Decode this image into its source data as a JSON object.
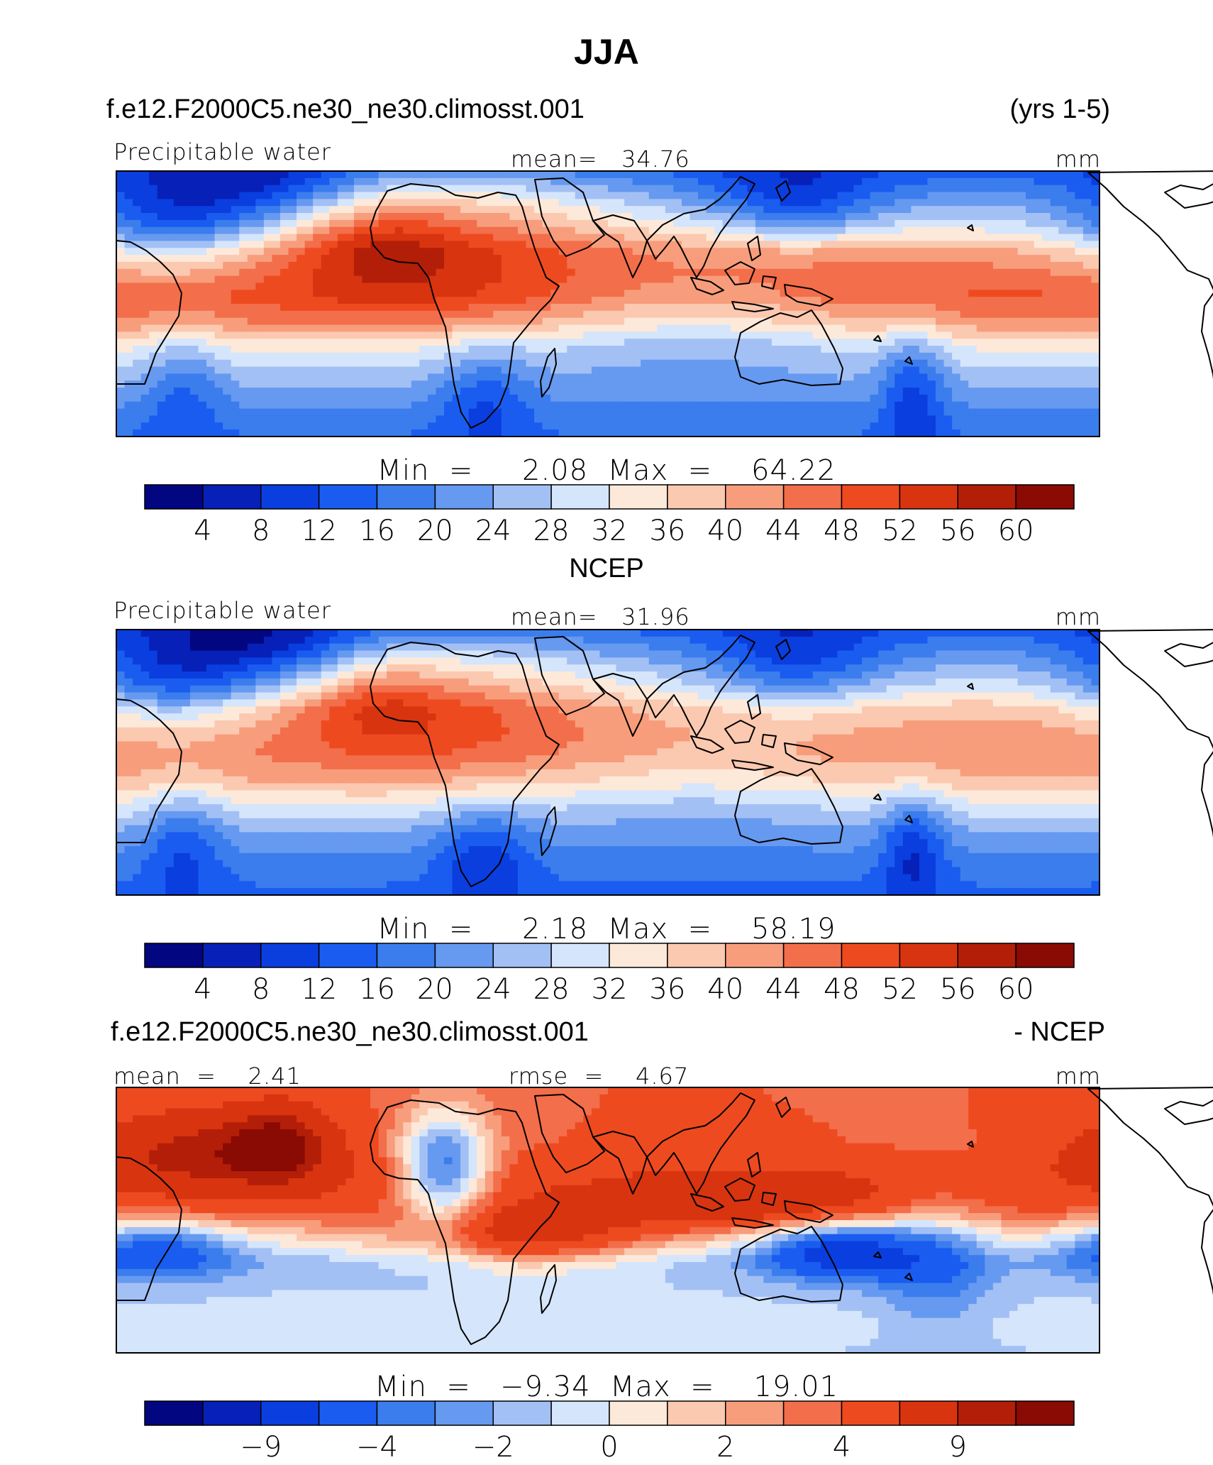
{
  "figure": {
    "title": "JJA"
  },
  "colors": {
    "palette": [
      "#020680",
      "#0620b8",
      "#0a3ede",
      "#1a5cf0",
      "#3b7ded",
      "#6699f0",
      "#a3c0f5",
      "#d5e5fb",
      "#fde9d9",
      "#fbc8b0",
      "#f79d7c",
      "#f36e4a",
      "#ee4a20",
      "#d83410",
      "#b31e08",
      "#8a0a04"
    ]
  },
  "chart_data": [
    {
      "type": "heatmap",
      "panel_heading": "f.e12.F2000C5.ne30_ne30.climosst.001",
      "years": "(yrs 1-5)",
      "variable": "Precipitable water",
      "mean_text": "mean=   34.76",
      "units": "mm",
      "min_max_text": "Min  =     2.08  Max  =    64.22",
      "min": 2.08,
      "max": 64.22,
      "mean": 34.76,
      "colorbar_ticks": [
        "4",
        "8",
        "12",
        "16",
        "20",
        "24",
        "28",
        "32",
        "36",
        "40",
        "44",
        "48",
        "52",
        "56",
        "60"
      ],
      "field": {
        "lon_range": [
          0,
          360
        ],
        "lat_range": [
          -38,
          38
        ],
        "base": [
          [
            -38,
            16
          ],
          [
            -30,
            20
          ],
          [
            -20,
            27
          ],
          [
            -12,
            34
          ],
          [
            -5,
            44
          ],
          [
            2,
            49
          ],
          [
            8,
            46
          ],
          [
            15,
            40
          ],
          [
            22,
            30
          ],
          [
            30,
            22
          ],
          [
            38,
            14
          ]
        ],
        "blobs": [
          {
            "lon": 125,
            "lat": 22,
            "dlon": 45,
            "dlat": 14,
            "amp": 14
          },
          {
            "lon": 95,
            "lat": 20,
            "dlon": 20,
            "dlat": 10,
            "amp": 10
          },
          {
            "lon": 20,
            "lat": 22,
            "dlon": 22,
            "dlat": 10,
            "amp": -14
          },
          {
            "lon": 55,
            "lat": 33,
            "dlon": 28,
            "dlat": 8,
            "amp": -12
          },
          {
            "lon": 25,
            "lat": -22,
            "dlon": 10,
            "dlat": 12,
            "amp": -8
          },
          {
            "lon": 135,
            "lat": -26,
            "dlon": 12,
            "dlat": 10,
            "amp": -9
          },
          {
            "lon": 250,
            "lat": 28,
            "dlon": 22,
            "dlat": 9,
            "amp": -13
          },
          {
            "lon": 292,
            "lat": -24,
            "dlon": 8,
            "dlat": 12,
            "amp": -12
          },
          {
            "lon": 210,
            "lat": -5,
            "dlon": 50,
            "dlat": 12,
            "amp": -10
          },
          {
            "lon": 250,
            "lat": 15,
            "dlon": 40,
            "dlat": 8,
            "amp": 6
          }
        ]
      }
    },
    {
      "type": "heatmap",
      "panel_heading": "NCEP",
      "variable": "Precipitable water",
      "mean_text": "mean=   31.96",
      "units": "mm",
      "min_max_text": "Min  =     2.18  Max  =    58.19",
      "min": 2.18,
      "max": 58.19,
      "mean": 31.96,
      "colorbar_ticks": [
        "4",
        "8",
        "12",
        "16",
        "20",
        "24",
        "28",
        "32",
        "36",
        "40",
        "44",
        "48",
        "52",
        "56",
        "60"
      ],
      "field": {
        "lon_range": [
          0,
          360
        ],
        "lat_range": [
          -38,
          38
        ],
        "base": [
          [
            -38,
            15
          ],
          [
            -30,
            18
          ],
          [
            -20,
            24
          ],
          [
            -12,
            32
          ],
          [
            -5,
            40
          ],
          [
            2,
            44
          ],
          [
            8,
            43
          ],
          [
            15,
            39
          ],
          [
            22,
            30
          ],
          [
            30,
            22
          ],
          [
            38,
            14
          ]
        ],
        "blobs": [
          {
            "lon": 125,
            "lat": 20,
            "dlon": 40,
            "dlat": 14,
            "amp": 10
          },
          {
            "lon": 95,
            "lat": 20,
            "dlon": 18,
            "dlat": 10,
            "amp": 9
          },
          {
            "lon": 20,
            "lat": 22,
            "dlon": 22,
            "dlat": 10,
            "amp": -14
          },
          {
            "lon": 55,
            "lat": 33,
            "dlon": 28,
            "dlat": 8,
            "amp": -13
          },
          {
            "lon": 25,
            "lat": -22,
            "dlon": 10,
            "dlat": 12,
            "amp": -9
          },
          {
            "lon": 135,
            "lat": -26,
            "dlon": 12,
            "dlat": 10,
            "amp": -10
          },
          {
            "lon": 250,
            "lat": 28,
            "dlon": 22,
            "dlat": 9,
            "amp": -12
          },
          {
            "lon": 292,
            "lat": -24,
            "dlon": 8,
            "dlat": 12,
            "amp": -12
          },
          {
            "lon": 210,
            "lat": -5,
            "dlon": 50,
            "dlat": 12,
            "amp": -6
          }
        ]
      }
    },
    {
      "type": "heatmap",
      "panel_heading": "f.e12.F2000C5.ne30_ne30.climosst.001",
      "panel_heading_right": "- NCEP",
      "mean_text": "mean  =    2.41",
      "rmse_text": "rmse  =    4.67",
      "units": "mm",
      "min_max_text": "Min  =   −9.34  Max  =    19.01",
      "min": -9.34,
      "max": 19.01,
      "mean": 2.41,
      "rmse": 4.67,
      "colorbar_levels": [
        -11,
        -9,
        -6,
        -4,
        -3,
        -2,
        -1,
        0,
        1,
        2,
        3,
        4,
        6,
        9,
        11
      ],
      "colorbar_ticks": [
        "−9",
        "−4",
        "−2",
        "0",
        "2",
        "4",
        "9"
      ],
      "colorbar_tick_levels": [
        -9,
        -4,
        -2,
        0,
        2,
        4,
        9
      ],
      "field": {
        "lon_range": [
          0,
          360
        ],
        "lat_range": [
          -38,
          38
        ],
        "base": [
          [
            -38,
            -1
          ],
          [
            -30,
            -0.5
          ],
          [
            -20,
            -1
          ],
          [
            -12,
            -1.5
          ],
          [
            -5,
            1
          ],
          [
            2,
            4
          ],
          [
            8,
            5
          ],
          [
            15,
            5
          ],
          [
            22,
            4
          ],
          [
            30,
            4
          ],
          [
            38,
            4
          ]
        ],
        "blobs": [
          {
            "lon": 35,
            "lat": 20,
            "dlon": 30,
            "dlat": 8,
            "amp": 6
          },
          {
            "lon": 60,
            "lat": 22,
            "dlon": 12,
            "dlat": 8,
            "amp": 5
          },
          {
            "lon": 120,
            "lat": 15,
            "dlon": 12,
            "dlat": 12,
            "amp": -8
          },
          {
            "lon": 150,
            "lat": -5,
            "dlon": 30,
            "dlat": 6,
            "amp": 6
          },
          {
            "lon": 230,
            "lat": 5,
            "dlon": 40,
            "dlat": 6,
            "amp": 4
          },
          {
            "lon": 265,
            "lat": -8,
            "dlon": 20,
            "dlat": 6,
            "amp": -7
          },
          {
            "lon": 15,
            "lat": -8,
            "dlon": 20,
            "dlat": 6,
            "amp": -5
          },
          {
            "lon": 300,
            "lat": -10,
            "dlon": 15,
            "dlat": 15,
            "amp": -3
          }
        ]
      }
    }
  ]
}
